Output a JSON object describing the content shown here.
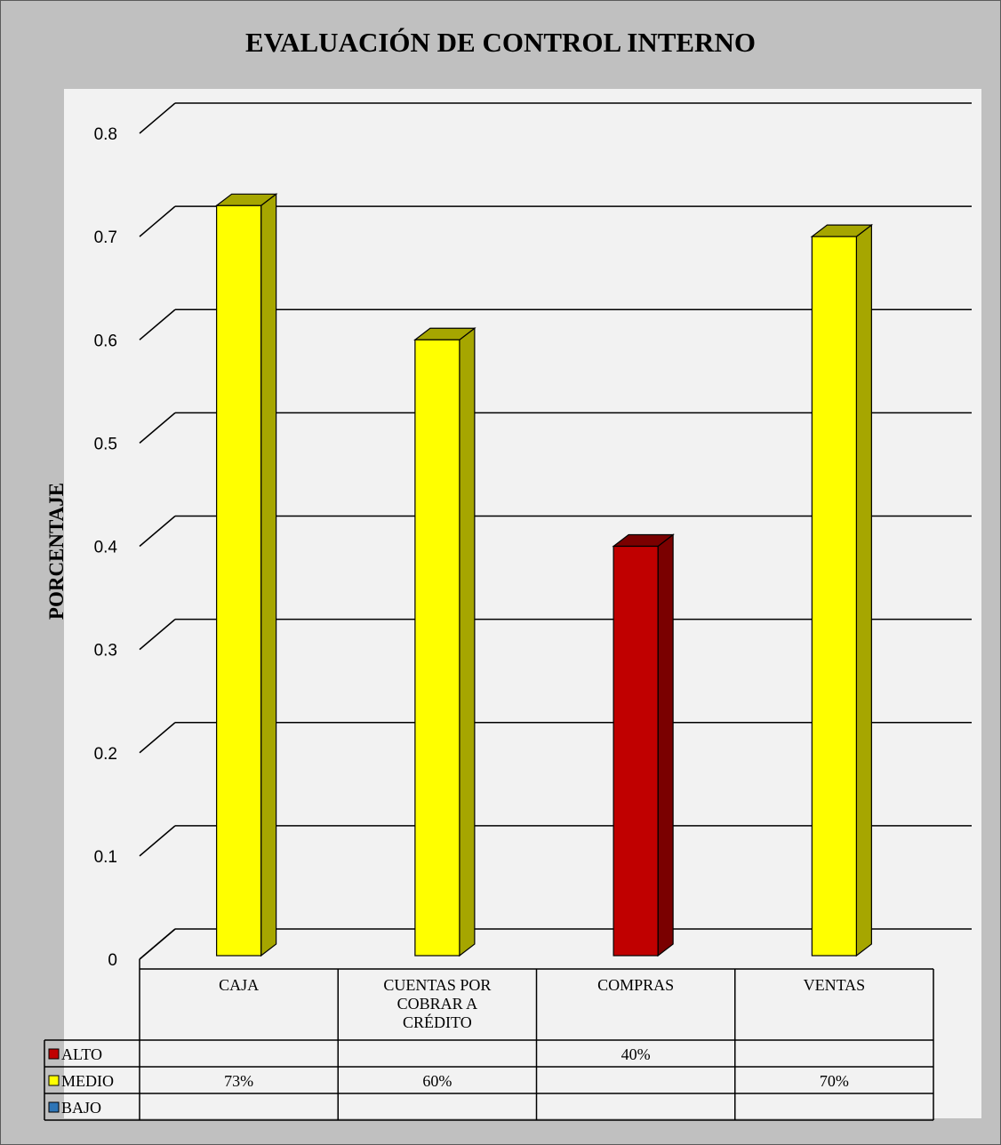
{
  "chart_data": {
    "type": "bar",
    "title": "EVALUACIÓN DE CONTROL INTERNO",
    "xlabel": "",
    "ylabel": "PORCENTAJE",
    "ylim": [
      0,
      0.8
    ],
    "y_ticks": [
      "0",
      "0.1",
      "0.2",
      "0.3",
      "0.4",
      "0.5",
      "0.6",
      "0.7",
      "0.8"
    ],
    "grid": true,
    "style": "3d-column",
    "legend_position": "data-table",
    "categories": [
      [
        "CAJA"
      ],
      [
        "CUENTAS POR",
        "COBRAR A",
        "CRÉDITO"
      ],
      [
        "COMPRAS"
      ],
      [
        "VENTAS"
      ]
    ],
    "series": [
      {
        "name": "ALTO",
        "color": "#c00000",
        "side_color": "#7a0000",
        "values": [
          null,
          null,
          0.4,
          null
        ],
        "labels": [
          "",
          "",
          "40%",
          ""
        ]
      },
      {
        "name": "MEDIO",
        "color": "#ffff00",
        "side_color": "#a6a600",
        "values": [
          0.73,
          0.6,
          null,
          0.7
        ],
        "labels": [
          "73%",
          "60%",
          "",
          "70%"
        ]
      },
      {
        "name": "BAJO",
        "color": "#2e75b6",
        "side_color": "#1f4e79",
        "values": [
          null,
          null,
          null,
          null
        ],
        "labels": [
          "",
          "",
          "",
          ""
        ]
      }
    ]
  }
}
